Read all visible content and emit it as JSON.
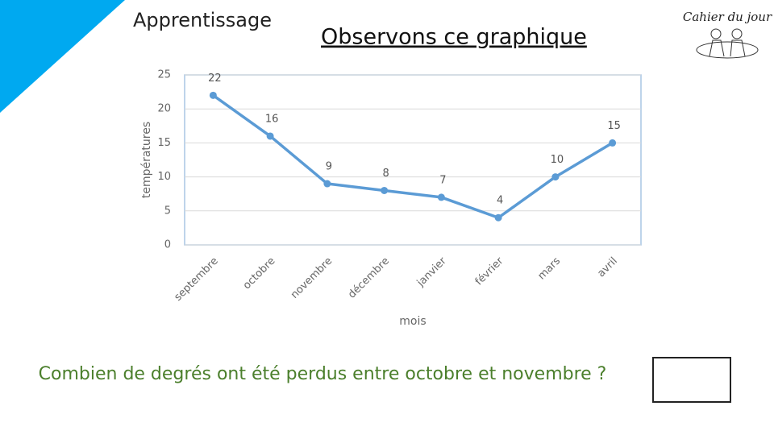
{
  "header": {
    "section": "Apprentissage",
    "title": "Observons ce graphique",
    "logo": "Cahier du jour"
  },
  "question": "Combien de degrés ont été perdus entre octobre et novembre ?",
  "chart_data": {
    "type": "line",
    "categories": [
      "septembre",
      "octobre",
      "novembre",
      "décembre",
      "janvier",
      "février",
      "mars",
      "avril"
    ],
    "values": [
      22,
      16,
      9,
      8,
      7,
      4,
      10,
      15
    ],
    "color": "#5b9bd5",
    "x_label": "mois",
    "y_label": "températures",
    "ylim": [
      0,
      25
    ],
    "yticks": [
      0,
      5,
      10,
      15,
      20,
      25
    ],
    "grid": true,
    "data_labels": true
  }
}
